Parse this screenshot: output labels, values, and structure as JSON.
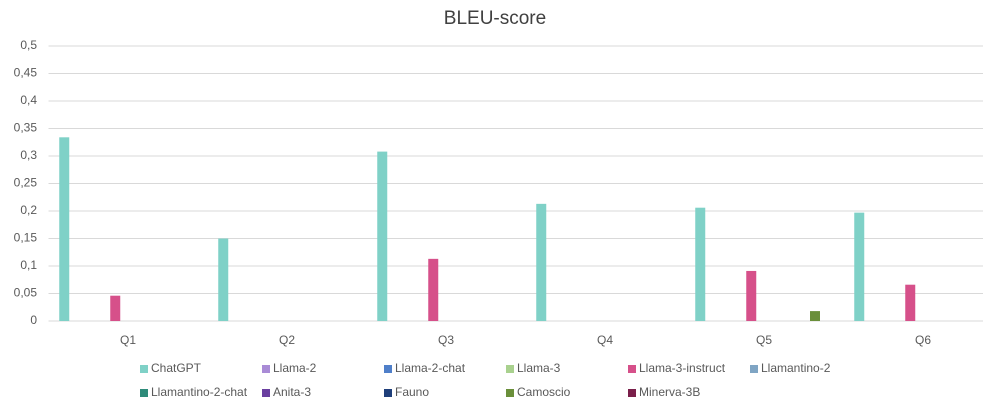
{
  "chart_data": {
    "type": "bar",
    "title": "BLEU-score",
    "categories": [
      "Q1",
      "Q2",
      "Q3",
      "Q4",
      "Q5",
      "Q6"
    ],
    "series": [
      {
        "name": "ChatGPT",
        "color": "#7fd1c7",
        "values": [
          0.334,
          0.15,
          0.308,
          0.213,
          0.206,
          0.197
        ]
      },
      {
        "name": "Llama-2",
        "color": "#a98bd6",
        "values": [
          0,
          0,
          0,
          0,
          0,
          0
        ]
      },
      {
        "name": "Llama-2-chat",
        "color": "#4f7fc9",
        "values": [
          0,
          0,
          0,
          0,
          0,
          0
        ]
      },
      {
        "name": "Llama-3",
        "color": "#a9d18e",
        "values": [
          0,
          0,
          0,
          0,
          0,
          0
        ]
      },
      {
        "name": "Llama-3-instruct",
        "color": "#d6508a",
        "values": [
          0.046,
          0,
          0.113,
          0,
          0.091,
          0.066
        ]
      },
      {
        "name": "Llamantino-2",
        "color": "#7fa5c4",
        "values": [
          0,
          0,
          0,
          0,
          0,
          0
        ]
      },
      {
        "name": "Llamantino-2-chat",
        "color": "#2e8b7a",
        "values": [
          0,
          0,
          0,
          0,
          0,
          0
        ]
      },
      {
        "name": "Anita-3",
        "color": "#6a3fa0",
        "values": [
          0,
          0,
          0,
          0,
          0,
          0
        ]
      },
      {
        "name": "Fauno",
        "color": "#1f3f7a",
        "values": [
          0,
          0,
          0,
          0,
          0,
          0
        ]
      },
      {
        "name": "Camoscio",
        "color": "#6a8f3a",
        "values": [
          0,
          0,
          0,
          0,
          0.018,
          0
        ]
      },
      {
        "name": "Minerva-3B",
        "color": "#7a1f4a",
        "values": [
          0,
          0,
          0,
          0,
          0,
          0
        ]
      }
    ],
    "ylim": [
      0,
      0.5
    ],
    "yticks": [
      0,
      {
        "value": 0.05,
        "label": "0,05"
      },
      {
        "value": 0.1,
        "label": "0,1"
      },
      {
        "value": 0.15,
        "label": "0,15"
      },
      {
        "value": 0.2,
        "label": "0,2"
      },
      {
        "value": 0.25,
        "label": "0,25"
      },
      {
        "value": 0.3,
        "label": "0,3"
      },
      {
        "value": 0.35,
        "label": "0,35"
      },
      {
        "value": 0.4,
        "label": "0,4"
      },
      {
        "value": 0.45,
        "label": "0,45"
      },
      {
        "value": 0.5,
        "label": "0,5"
      }
    ],
    "grid": true,
    "legend": "bottom"
  }
}
